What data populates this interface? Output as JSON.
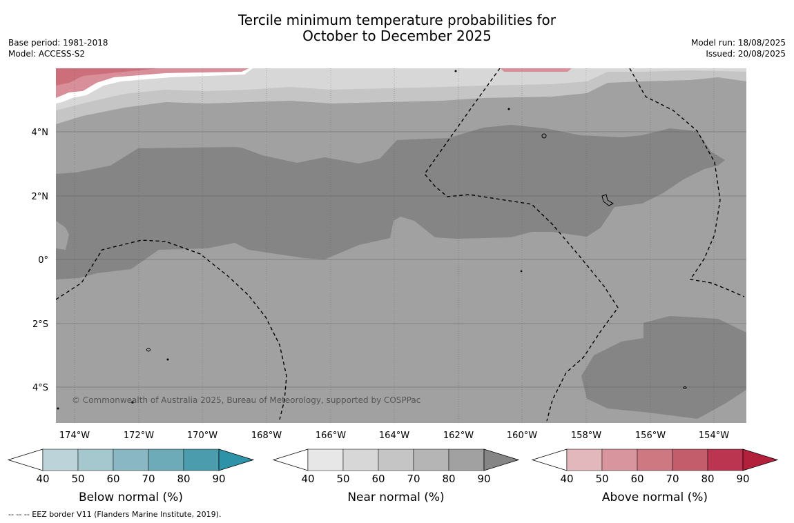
{
  "title": {
    "line1": "Tercile minimum temperature probabilities for",
    "line2": "October to December 2025"
  },
  "meta": {
    "base_period": "Base period: 1981-2018",
    "model": "Model: ACCESS-S2",
    "model_run": "Model run: 18/08/2025",
    "issued": "Issued: 20/08/2025"
  },
  "map": {
    "lat_ticks": [
      "4°N",
      "2°N",
      "0°",
      "2°S",
      "4°S"
    ],
    "lon_ticks": [
      "174°W",
      "172°W",
      "170°W",
      "168°W",
      "166°W",
      "164°W",
      "162°W",
      "160°W",
      "158°W",
      "156°W",
      "154°W"
    ],
    "copyright": "© Commonwealth of Australia 2025, Bureau of Meteorology, supported by COSPPac",
    "colors": {
      "near_90": "#858585",
      "near_80": "#a1a1a1",
      "near_70": "#b5b5b5",
      "near_60": "#c5c5c5",
      "near_50": "#d7d7d7",
      "above_70": "#cc6f7a",
      "above_60": "#d88f99"
    }
  },
  "colorbars": [
    {
      "label": "Below normal (%)",
      "ticks": [
        "40",
        "50",
        "60",
        "70",
        "80",
        "90"
      ],
      "colors": [
        "#bcd3da",
        "#a5c7ce",
        "#89b8c4",
        "#6dabb9",
        "#4b9dae",
        "#2e93a9"
      ]
    },
    {
      "label": "Near normal (%)",
      "ticks": [
        "40",
        "50",
        "60",
        "70",
        "80",
        "90"
      ],
      "colors": [
        "#e7e7e7",
        "#d7d7d7",
        "#c5c5c5",
        "#b5b5b5",
        "#a1a1a1",
        "#858585"
      ]
    },
    {
      "label": "Above normal (%)",
      "ticks": [
        "40",
        "50",
        "60",
        "70",
        "80",
        "90"
      ],
      "colors": [
        "#e3b8bd",
        "#d8959d",
        "#ce7882",
        "#c45d6b",
        "#bb3450",
        "#b3203c"
      ]
    }
  ],
  "footnote": "--  --  -- EEZ border V11 (Flanders Marine Institute, 2019)."
}
